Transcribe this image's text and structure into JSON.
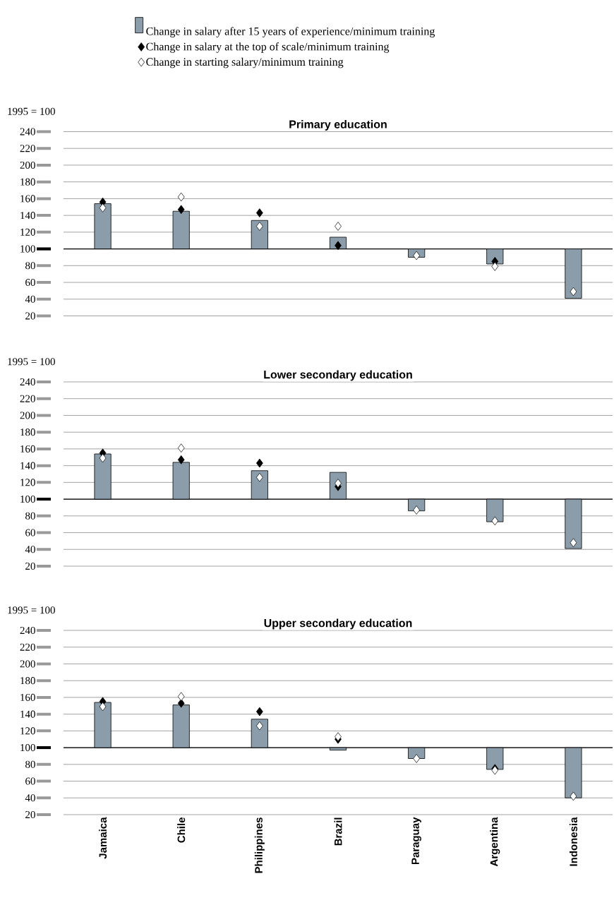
{
  "chart_data": [
    {
      "type": "bar",
      "title": "Primary education",
      "ylabel": "1995 = 100",
      "categories": [
        null,
        null,
        null,
        null,
        null,
        null,
        null
      ],
      "series": [
        {
          "name": "Change in salary after 15 years of experience/minimum training",
          "type": "bar",
          "color": "#8b9daa",
          "base": [
            100,
            100,
            100,
            100,
            100,
            100,
            100
          ],
          "values": [
            54,
            45,
            34,
            14,
            -10,
            -18,
            -59
          ]
        },
        {
          "name": "Change in salary at the top of scale/minimum training",
          "type": "scatter",
          "color": "#000000",
          "values": [
            156,
            147,
            143,
            104,
            null,
            85,
            null
          ]
        },
        {
          "name": "Change in starting salary/minimum training",
          "type": "scatter",
          "color": "#ffffff",
          "values": [
            149,
            162,
            127,
            127,
            92,
            79,
            49
          ]
        }
      ],
      "ylim": [
        20,
        240
      ],
      "yticks": [
        20,
        40,
        60,
        80,
        100,
        120,
        140,
        160,
        180,
        200,
        220,
        240
      ],
      "ref_lines": [
        {
          "axis": "y",
          "value": 100,
          "color": "#000000"
        }
      ],
      "grid": "y",
      "marker": "diamond",
      "legend": "top"
    },
    {
      "type": "bar",
      "title": "Lower secondary education",
      "ylabel": "1995 = 100",
      "categories": [
        null,
        null,
        null,
        null,
        null,
        null,
        null
      ],
      "series": [
        {
          "type": "bar",
          "color": "#8b9daa",
          "base": [
            100,
            100,
            100,
            100,
            100,
            100,
            100
          ],
          "values": [
            54,
            44,
            34,
            32,
            -14,
            -27,
            -59
          ]
        },
        {
          "type": "scatter",
          "color": "#000000",
          "values": [
            155,
            147,
            143,
            115,
            null,
            null,
            null
          ]
        },
        {
          "type": "scatter",
          "color": "#ffffff",
          "values": [
            149,
            161,
            126,
            119,
            87,
            74,
            48
          ]
        }
      ],
      "ylim": [
        20,
        240
      ],
      "yticks": [
        20,
        40,
        60,
        80,
        100,
        120,
        140,
        160,
        180,
        200,
        220,
        240
      ],
      "ref_lines": [
        {
          "axis": "y",
          "value": 100,
          "color": "#000000"
        }
      ],
      "grid": "y",
      "marker": "diamond"
    },
    {
      "type": "bar",
      "title": "Upper secondary education",
      "ylabel": "1995 = 100",
      "categories": [
        "Jamaica",
        "Chile",
        "Philippines",
        "Brazil",
        "Paraguay",
        "Argentina",
        "Indonesia"
      ],
      "series": [
        {
          "type": "bar",
          "color": "#8b9daa",
          "base": [
            100,
            100,
            100,
            100,
            100,
            100,
            100
          ],
          "values": [
            54,
            51,
            34,
            -3,
            -13,
            -26,
            -60
          ]
        },
        {
          "type": "scatter",
          "color": "#000000",
          "values": [
            155,
            153,
            143,
            110,
            null,
            75,
            null
          ]
        },
        {
          "type": "scatter",
          "color": "#ffffff",
          "values": [
            149,
            161,
            126,
            113,
            87,
            73,
            42
          ]
        }
      ],
      "ylim": [
        20,
        240
      ],
      "yticks": [
        20,
        40,
        60,
        80,
        100,
        120,
        140,
        160,
        180,
        200,
        220,
        240
      ],
      "ref_lines": [
        {
          "axis": "y",
          "value": 100,
          "color": "#000000"
        }
      ],
      "grid": "y",
      "marker": "diamond"
    }
  ]
}
